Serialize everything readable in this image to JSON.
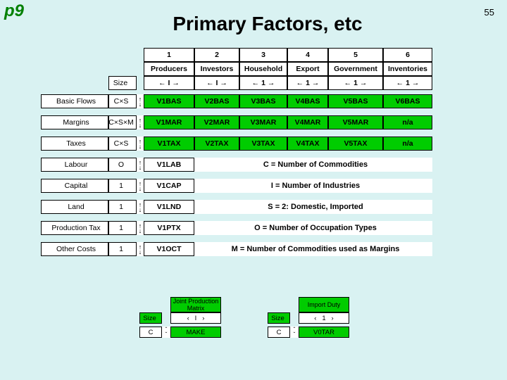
{
  "page": {
    "corner": "p9",
    "number": "55",
    "title": "Primary Factors, etc"
  },
  "columns": [
    {
      "num": "1",
      "name": "Producers",
      "arrow": "← I →"
    },
    {
      "num": "2",
      "name": "Investors",
      "arrow": "← I →"
    },
    {
      "num": "3",
      "name": "Household",
      "arrow": "← 1 →"
    },
    {
      "num": "4",
      "name": "Export",
      "arrow": "← 1 →"
    },
    {
      "num": "5",
      "name": "Government",
      "arrow": "← 1 →"
    },
    {
      "num": "6",
      "name": "Inventories",
      "arrow": "← 1 →"
    }
  ],
  "rows_top": [
    {
      "label": "Basic Flows",
      "size": "C×S",
      "cells": [
        "V1BAS",
        "V2BAS",
        "V3BAS",
        "V4BAS",
        "V5BAS",
        "V6BAS"
      ]
    },
    {
      "label": "Margins",
      "size": "C×S×M",
      "cells": [
        "V1MAR",
        "V2MAR",
        "V3MAR",
        "V4MAR",
        "V5MAR",
        "n/a"
      ]
    },
    {
      "label": "Taxes",
      "size": "C×S",
      "cells": [
        "V1TAX",
        "V2TAX",
        "V3TAX",
        "V4TAX",
        "V5TAX",
        "n/a"
      ]
    }
  ],
  "rows_bottom": [
    {
      "label": "Labour",
      "size": "O",
      "cell": "V1LAB",
      "legend": "C = Number of Commodities"
    },
    {
      "label": "Capital",
      "size": "1",
      "cell": "V1CAP",
      "legend": "I  = Number of Industries"
    },
    {
      "label": "Land",
      "size": "1",
      "cell": "V1LND",
      "legend": "S = 2: Domestic, Imported"
    },
    {
      "label": "Production Tax",
      "size": "1",
      "cell": "V1PTX",
      "legend": "O = Number of Occupation Types"
    },
    {
      "label": "Other Costs",
      "size": "1",
      "cell": "V1OCT",
      "legend": "M   =   Number of Commodities used as Margins"
    }
  ],
  "bottom_tables": [
    {
      "title": "Joint Production Matrix",
      "col": "I",
      "row": "C",
      "body": "MAKE"
    },
    {
      "title": "Import Duty",
      "col": "1",
      "row": "C",
      "body": "V0TAR"
    }
  ],
  "size_word": "Size",
  "colors": {
    "green": "#00cc00",
    "bg": "#d9f2f2"
  }
}
